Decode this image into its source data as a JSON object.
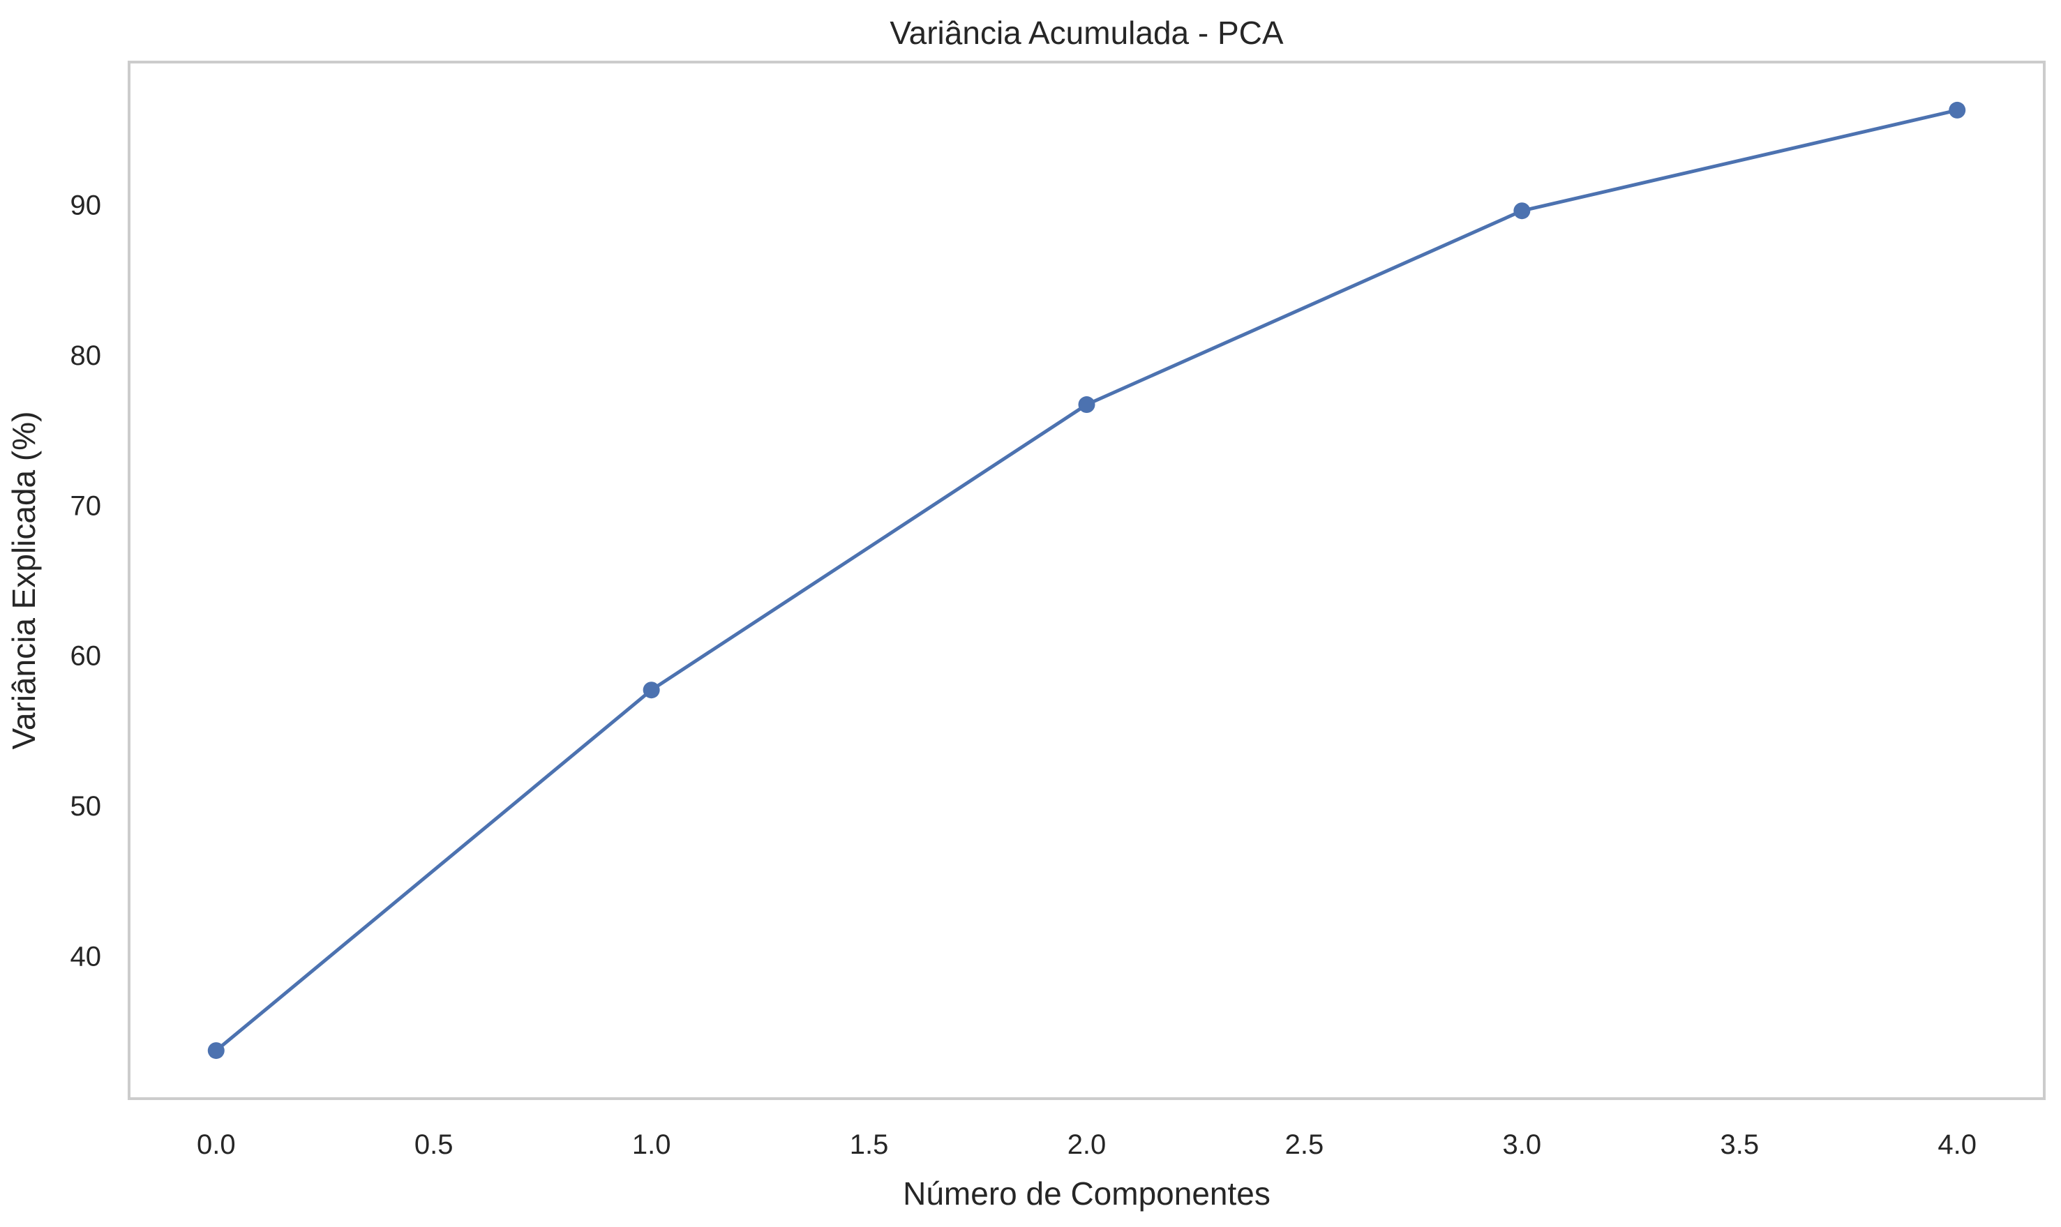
{
  "chart_data": {
    "type": "line",
    "title": "Variância Acumulada - PCA",
    "xlabel": "Número de Componentes",
    "ylabel": "Variância Explicada (%)",
    "x": [
      0,
      1,
      2,
      3,
      4
    ],
    "series": [
      {
        "values": [
          33.7,
          57.7,
          76.7,
          89.6,
          96.3
        ]
      }
    ],
    "xlim": [
      -0.2,
      4.2
    ],
    "ylim": [
      30.5,
      99.5
    ],
    "xticks": [
      0.0,
      0.5,
      1.0,
      1.5,
      2.0,
      2.5,
      3.0,
      3.5,
      4.0
    ],
    "xtick_labels": [
      "0.0",
      "0.5",
      "1.0",
      "1.5",
      "2.0",
      "2.5",
      "3.0",
      "3.5",
      "4.0"
    ],
    "yticks": [
      40,
      50,
      60,
      70,
      80,
      90
    ],
    "ytick_labels": [
      "40",
      "50",
      "60",
      "70",
      "80",
      "90"
    ],
    "grid": false,
    "marker": "circle",
    "colors": {
      "line": "#4c72b0",
      "frame": "#cccccc",
      "text": "#262626",
      "background": "#ffffff"
    }
  }
}
